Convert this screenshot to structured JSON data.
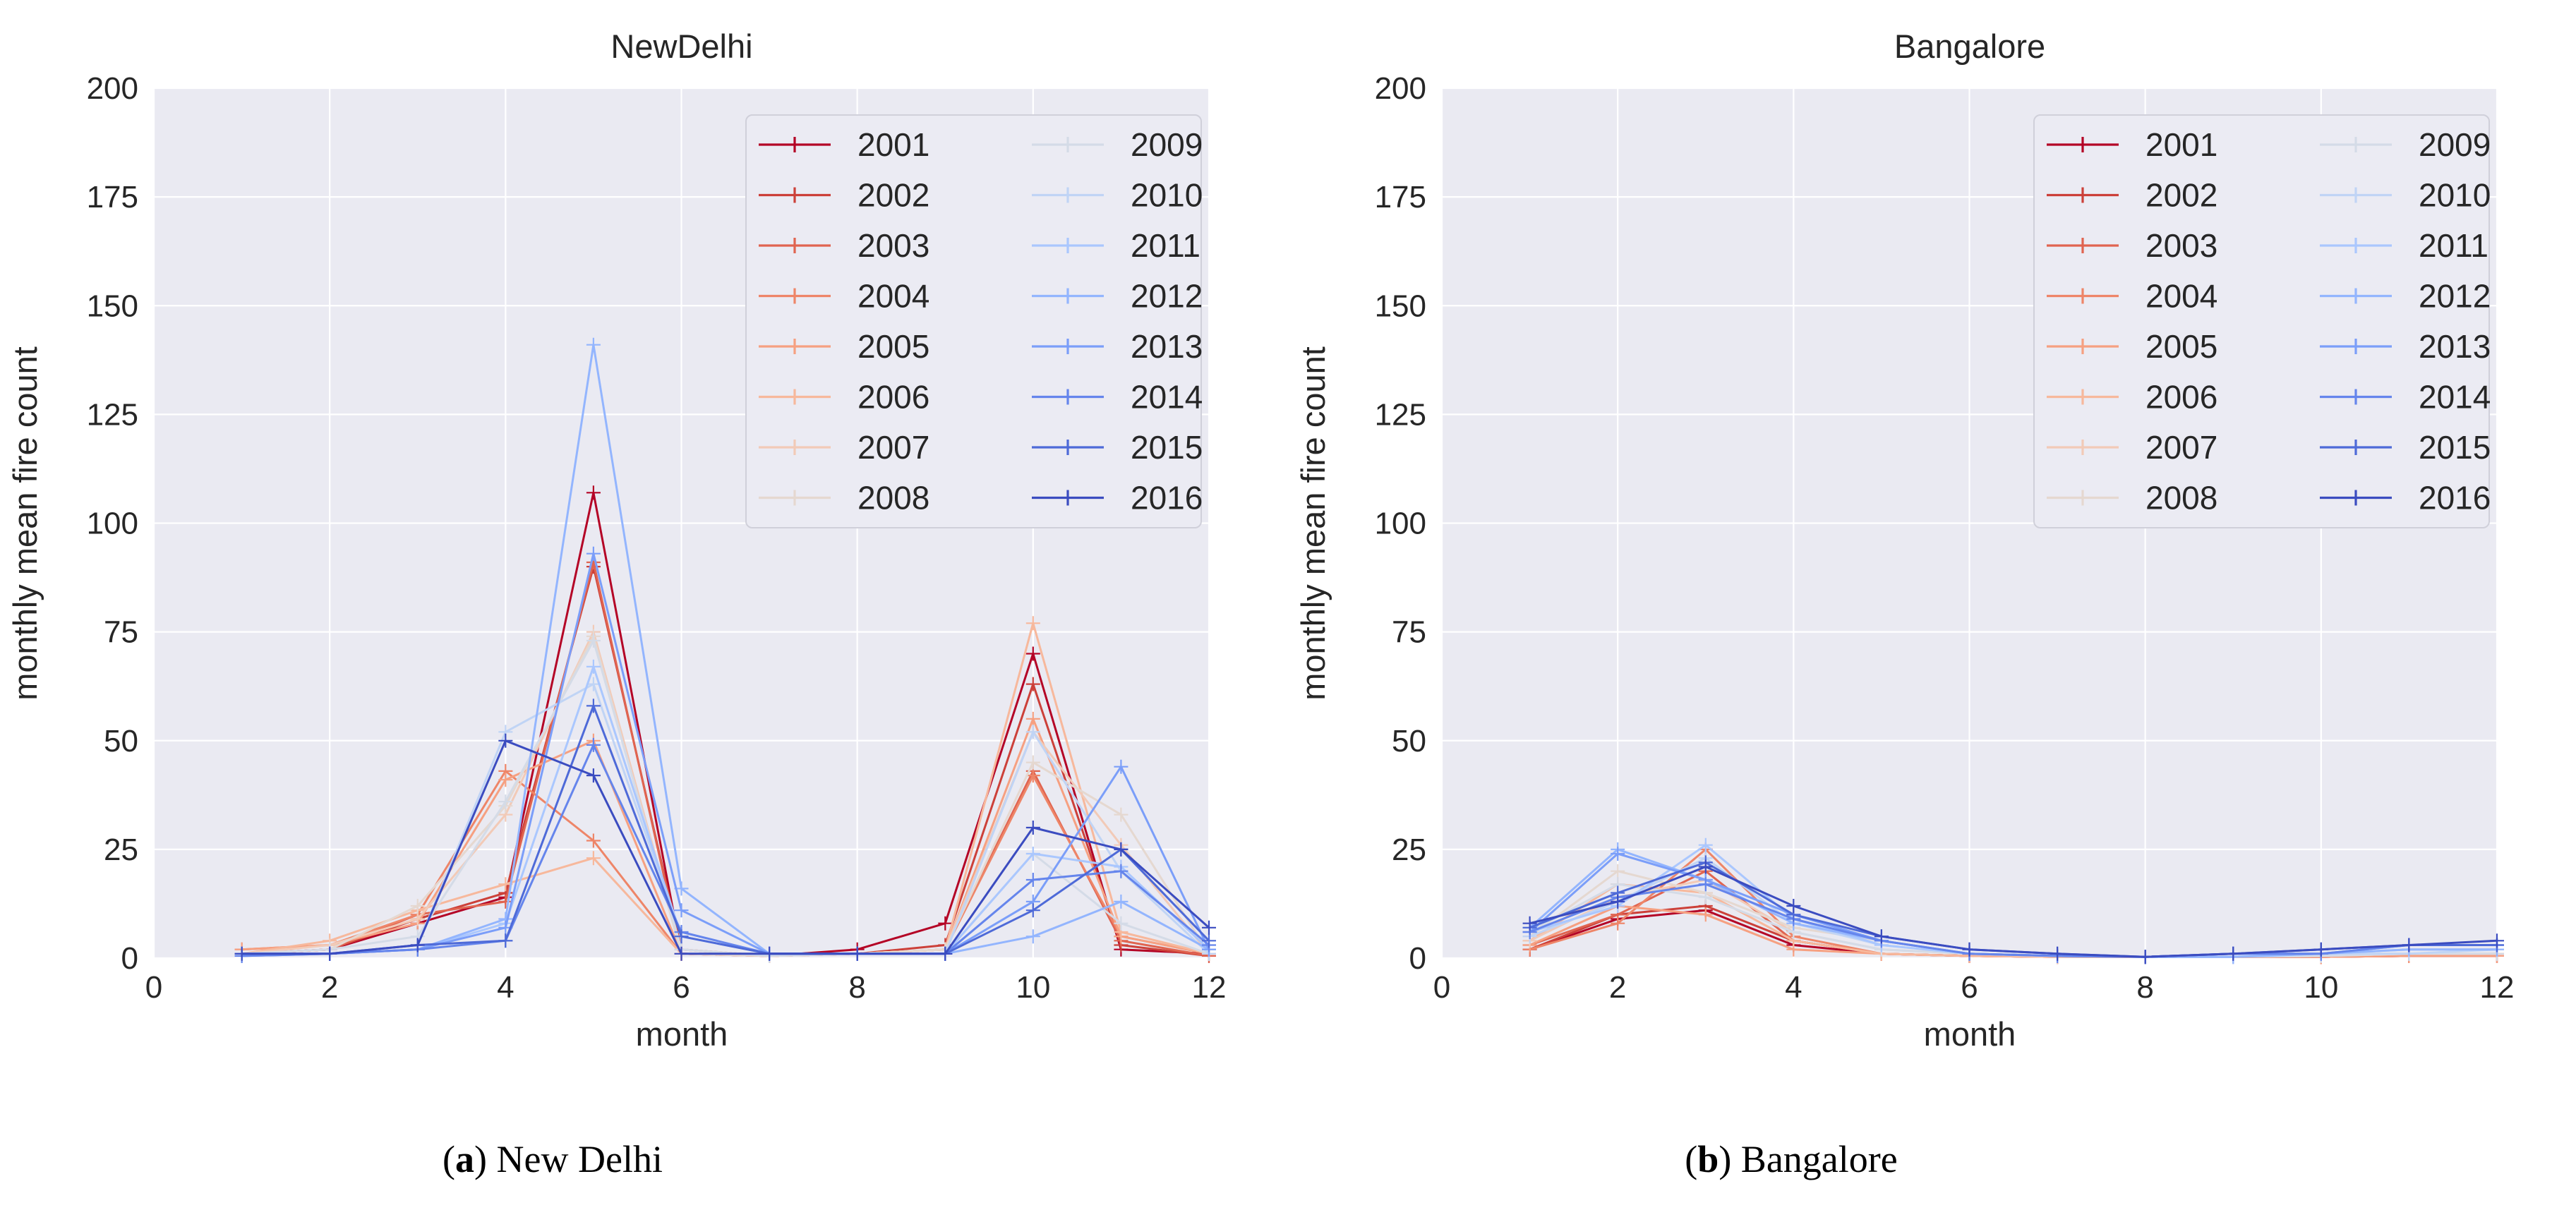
{
  "figure": {
    "background": "#ffffff",
    "plot_bg": "#eaeaf2",
    "grid_color": "#ffffff",
    "text_color": "#262626",
    "legend_bg": "#ebebf3",
    "legend_border": "#d0d0da"
  },
  "captions": {
    "open": "(",
    "close": ")"
  },
  "years": [
    "2001",
    "2002",
    "2003",
    "2004",
    "2005",
    "2006",
    "2007",
    "2008",
    "2009",
    "2010",
    "2011",
    "2012",
    "2013",
    "2014",
    "2015",
    "2016"
  ],
  "palette": [
    "#b40426",
    "#cc4039",
    "#e06450",
    "#ee8568",
    "#f6a081",
    "#f7b89c",
    "#f2cab7",
    "#e5d8d0",
    "#d4dbe7",
    "#c0d4f5",
    "#aac7fe",
    "#93b5fe",
    "#7b9ef9",
    "#6585ec",
    "#4e6ad8",
    "#3b4cc0"
  ],
  "chart_data": [
    {
      "type": "line",
      "title": "NewDelhi",
      "caption_letter": "a",
      "caption_text": " New Delhi",
      "xlabel": "month",
      "ylabel": "monthly mean fire count",
      "x": [
        1,
        2,
        3,
        4,
        5,
        6,
        7,
        8,
        9,
        10,
        11,
        12
      ],
      "axes": {
        "xlim": [
          0,
          12
        ],
        "ylim": [
          0,
          200
        ],
        "xticks": [
          0,
          2,
          4,
          6,
          8,
          10,
          12
        ],
        "yticks": [
          0,
          25,
          50,
          75,
          100,
          125,
          150,
          175,
          200
        ],
        "grid": true,
        "legend_position": "upper right",
        "legend_columns": 2
      },
      "series": [
        {
          "name": "2001",
          "values": [
            1,
            2,
            8,
            14,
            107,
            1,
            0.5,
            2,
            8,
            70,
            2,
            1
          ]
        },
        {
          "name": "2002",
          "values": [
            1,
            2,
            9,
            15,
            90,
            2,
            0.5,
            1,
            3,
            63,
            3,
            0.5
          ]
        },
        {
          "name": "2003",
          "values": [
            1,
            2,
            10,
            13,
            91,
            1,
            0.5,
            1,
            2,
            43,
            4,
            0.5
          ]
        },
        {
          "name": "2004",
          "values": [
            2,
            3,
            10,
            43,
            27,
            1,
            0.5,
            1,
            2,
            42,
            5,
            1
          ]
        },
        {
          "name": "2005",
          "values": [
            2,
            3,
            8,
            41,
            50,
            1,
            0.5,
            1,
            2,
            55,
            5,
            1
          ]
        },
        {
          "name": "2006",
          "values": [
            1,
            4,
            11,
            17,
            23,
            1,
            0.5,
            1,
            2,
            77,
            6,
            1
          ]
        },
        {
          "name": "2007",
          "values": [
            1,
            3,
            9,
            33,
            75,
            2,
            0.5,
            1,
            2,
            52,
            26,
            1
          ]
        },
        {
          "name": "2008",
          "values": [
            1,
            2,
            12,
            35,
            74,
            1,
            0.5,
            1,
            2,
            45,
            33,
            1
          ]
        },
        {
          "name": "2009",
          "values": [
            1,
            2,
            5,
            36,
            73,
            2,
            0.5,
            1,
            1,
            24,
            8,
            1
          ]
        },
        {
          "name": "2010",
          "values": [
            1,
            1,
            3,
            52,
            63,
            5,
            1,
            1,
            1,
            52,
            20,
            1
          ]
        },
        {
          "name": "2011",
          "values": [
            1,
            1,
            2,
            8,
            67,
            5,
            1,
            1,
            1,
            24,
            21,
            2
          ]
        },
        {
          "name": "2012",
          "values": [
            1,
            1,
            2,
            9,
            141,
            16,
            1,
            1,
            1,
            5,
            13,
            2
          ]
        },
        {
          "name": "2013",
          "values": [
            0.5,
            1,
            2,
            7,
            93,
            11,
            1,
            1,
            1,
            13,
            44,
            2
          ]
        },
        {
          "name": "2014",
          "values": [
            0.5,
            1,
            2,
            4,
            49,
            6,
            1,
            1,
            1,
            18,
            20,
            3
          ]
        },
        {
          "name": "2015",
          "values": [
            1,
            1,
            3,
            4,
            58,
            5,
            1,
            1,
            1,
            11,
            25,
            4
          ]
        },
        {
          "name": "2016",
          "values": [
            1,
            1,
            3,
            50,
            42,
            1,
            1,
            1,
            1,
            30,
            25,
            7
          ]
        }
      ]
    },
    {
      "type": "line",
      "title": "Bangalore",
      "caption_letter": "b",
      "caption_text": " Bangalore",
      "xlabel": "month",
      "ylabel": "monthly mean fire count",
      "x": [
        1,
        2,
        3,
        4,
        5,
        6,
        7,
        8,
        9,
        10,
        11,
        12
      ],
      "axes": {
        "xlim": [
          0,
          12
        ],
        "ylim": [
          0,
          200
        ],
        "xticks": [
          0,
          2,
          4,
          6,
          8,
          10,
          12
        ],
        "yticks": [
          0,
          25,
          50,
          75,
          100,
          125,
          150,
          175,
          200
        ],
        "grid": true,
        "legend_position": "upper right",
        "legend_columns": 2
      },
      "series": [
        {
          "name": "2001",
          "values": [
            2,
            9,
            11,
            3,
            1,
            0.5,
            0.3,
            0.3,
            0.3,
            0.3,
            0.5,
            0.5
          ]
        },
        {
          "name": "2002",
          "values": [
            2,
            10,
            12,
            4,
            1,
            0.5,
            0.3,
            0.3,
            0.3,
            0.3,
            0.5,
            1
          ]
        },
        {
          "name": "2003",
          "values": [
            3,
            10,
            20,
            4,
            1,
            0.5,
            0.3,
            0.3,
            0.3,
            0.3,
            0.5,
            0.5
          ]
        },
        {
          "name": "2004",
          "values": [
            2,
            8,
            25,
            5,
            1,
            0.5,
            0.3,
            0.3,
            0.3,
            0.3,
            0.5,
            1
          ]
        },
        {
          "name": "2005",
          "values": [
            3,
            12,
            10,
            2,
            1,
            0.5,
            0.3,
            0.3,
            0.3,
            0.3,
            0.5,
            0.5
          ]
        },
        {
          "name": "2006",
          "values": [
            4,
            17,
            15,
            4,
            1,
            0.5,
            0.3,
            0.3,
            0.3,
            0.5,
            1,
            1
          ]
        },
        {
          "name": "2007",
          "values": [
            4,
            14,
            18,
            6,
            2,
            1,
            0.3,
            0.3,
            0.3,
            0.5,
            1,
            1
          ]
        },
        {
          "name": "2008",
          "values": [
            5,
            20,
            15,
            7,
            4,
            1,
            0.5,
            0.3,
            0.3,
            1,
            1,
            1
          ]
        },
        {
          "name": "2009",
          "values": [
            6,
            17,
            14,
            6,
            2,
            1,
            0.5,
            0.3,
            0.3,
            0.5,
            1,
            1
          ]
        },
        {
          "name": "2010",
          "values": [
            5,
            13,
            23,
            8,
            3,
            1,
            0.5,
            0.3,
            0.3,
            1,
            1,
            2
          ]
        },
        {
          "name": "2011",
          "values": [
            6,
            12,
            26,
            9,
            3,
            1,
            0.5,
            0.3,
            0.3,
            1,
            2,
            2
          ]
        },
        {
          "name": "2012",
          "values": [
            7,
            25,
            18,
            8,
            4,
            1,
            0.5,
            0.3,
            0.3,
            1,
            2,
            2
          ]
        },
        {
          "name": "2013",
          "values": [
            6,
            24,
            18,
            10,
            4,
            1,
            0.5,
            0.3,
            1,
            1,
            3,
            3
          ]
        },
        {
          "name": "2014",
          "values": [
            6,
            14,
            17,
            9,
            4,
            1,
            0.5,
            0.3,
            1,
            1,
            3,
            3
          ]
        },
        {
          "name": "2015",
          "values": [
            7,
            15,
            22,
            10,
            5,
            2,
            1,
            0.3,
            1,
            2,
            3,
            3
          ]
        },
        {
          "name": "2016",
          "values": [
            8,
            13,
            21,
            12,
            5,
            2,
            1,
            0.3,
            1,
            2,
            3,
            4
          ]
        }
      ]
    }
  ]
}
